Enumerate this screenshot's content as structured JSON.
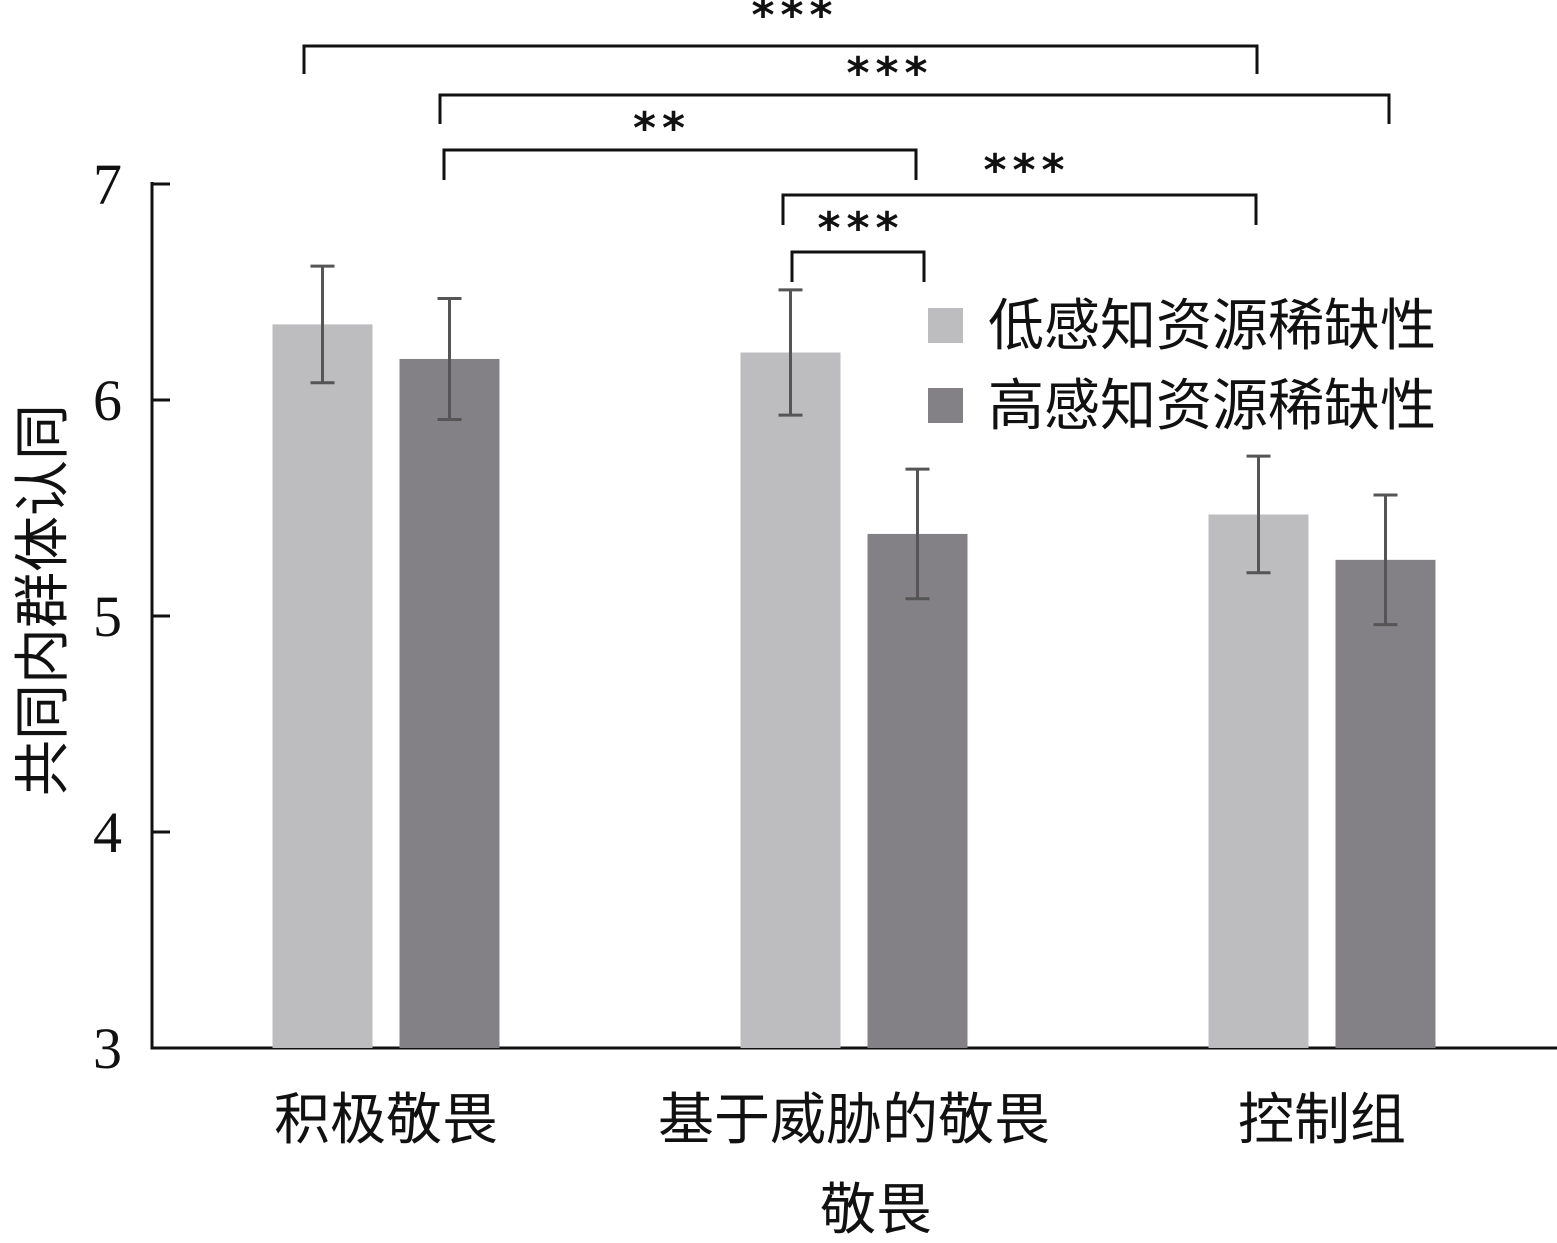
{
  "chart_data": {
    "type": "bar",
    "xlabel": "敬畏",
    "ylabel": "共同内群体认同",
    "ylim": [
      3,
      7
    ],
    "yticks": [
      3,
      4,
      5,
      6,
      7
    ],
    "categories": [
      "积极敬畏",
      "基于威胁的敬畏",
      "控制组"
    ],
    "series": [
      {
        "name": "低感知资源稀缺性",
        "color": "#bdbcbf",
        "values": [
          6.35,
          6.22,
          5.47
        ],
        "err": [
          0.27,
          0.29,
          0.27
        ]
      },
      {
        "name": "高感知资源稀缺性",
        "color": "#838186",
        "values": [
          6.19,
          5.38,
          5.26
        ],
        "err": [
          0.28,
          0.3,
          0.3
        ]
      }
    ],
    "legend_position": "top-right",
    "grid": false,
    "significance": [
      {
        "from": [
          0,
          0
        ],
        "to": [
          2,
          0
        ],
        "label": "***"
      },
      {
        "from": [
          0,
          1
        ],
        "to": [
          2,
          1
        ],
        "label": "***"
      },
      {
        "from": [
          0,
          1
        ],
        "to": [
          1,
          1
        ],
        "label": "**"
      },
      {
        "from": [
          1,
          0
        ],
        "to": [
          2,
          0
        ],
        "label": "***"
      },
      {
        "from": [
          1,
          0
        ],
        "to": [
          1,
          1
        ],
        "label": "***"
      }
    ]
  }
}
